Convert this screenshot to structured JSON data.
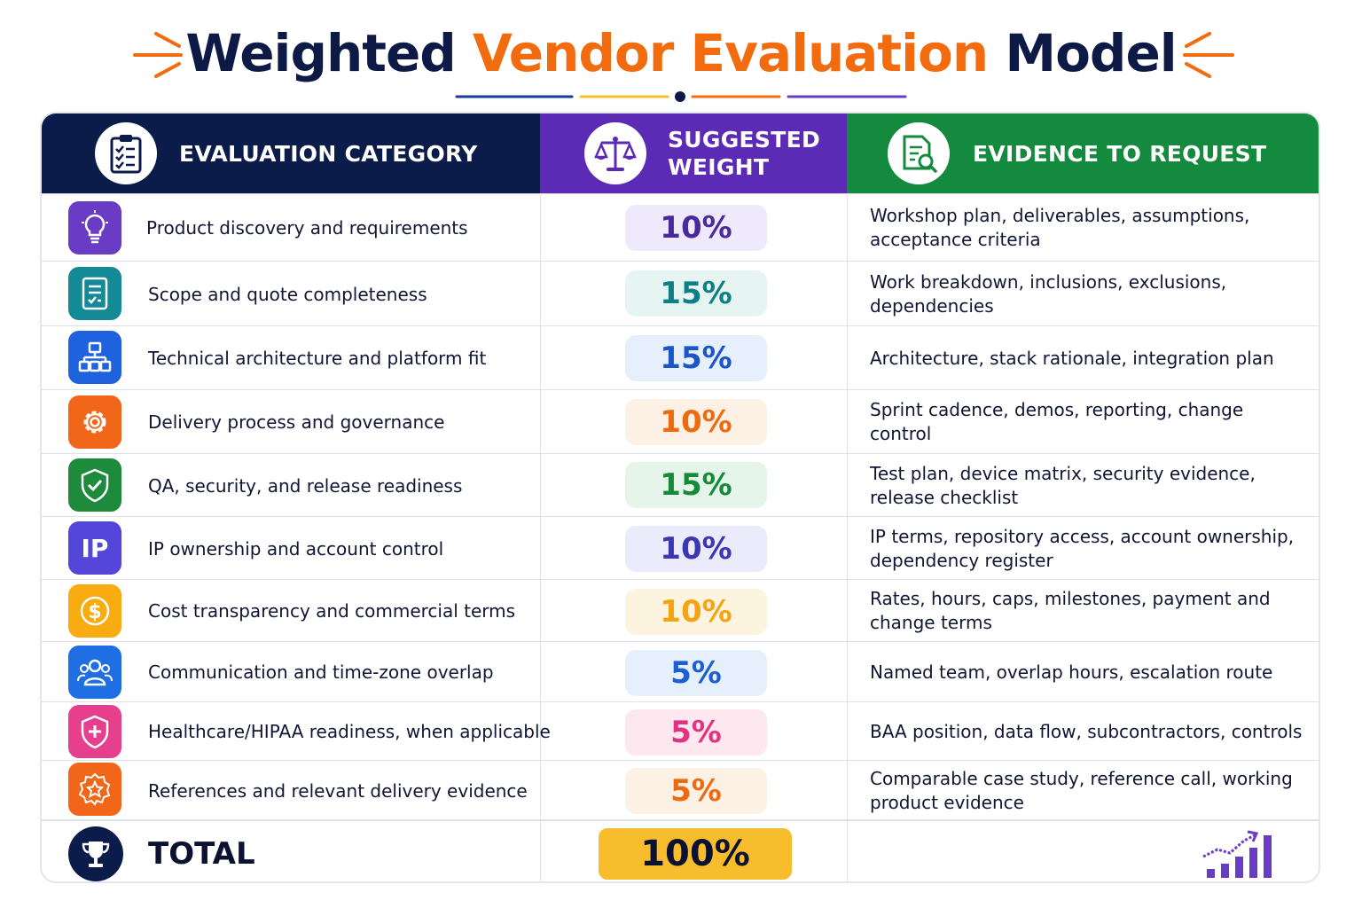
{
  "title": {
    "part1": "Weighted",
    "part2": "Vendor Evaluation",
    "part3": "Model"
  },
  "headers": {
    "category": "EVALUATION CATEGORY",
    "weight_line1": "SUGGESTED",
    "weight_line2": "WEIGHT",
    "evidence": "EVIDENCE TO REQUEST",
    "category_icon": "clipboard-checklist-icon",
    "weight_icon": "balance-scale-icon",
    "evidence_icon": "document-search-icon"
  },
  "rows": [
    {
      "category": "Product discovery and requirements",
      "weight": "10%",
      "evidence": "Workshop plan, deliverables, assumptions, acceptance criteria",
      "icon": "lightbulb-icon",
      "icon_color": "#6a3bc4",
      "weight_color": "#4a2a9a",
      "pill_color": "#efeafb"
    },
    {
      "category": "Scope and quote completeness",
      "weight": "15%",
      "evidence": "Work breakdown, inclusions, exclusions, dependencies",
      "icon": "checklist-document-icon",
      "icon_color": "#138a95",
      "weight_color": "#0f7e86",
      "pill_color": "#e6f5f2"
    },
    {
      "category": "Technical architecture and platform fit",
      "weight": "15%",
      "evidence": "Architecture, stack rationale, integration plan",
      "icon": "architecture-hierarchy-icon",
      "icon_color": "#1f62dd",
      "weight_color": "#1c55c7",
      "pill_color": "#e6f0fc"
    },
    {
      "category": "Delivery process and governance",
      "weight": "10%",
      "evidence": "Sprint cadence, demos, reporting, change control",
      "icon": "gear-icon",
      "icon_color": "#f2661a",
      "weight_color": "#ee6a10",
      "pill_color": "#fdf0e4"
    },
    {
      "category": "QA, security, and release readiness",
      "weight": "15%",
      "evidence": "Test plan, device matrix, security evidence, release checklist",
      "icon": "shield-check-icon",
      "icon_color": "#1d8a3c",
      "weight_color": "#178a3a",
      "pill_color": "#e5f5ea"
    },
    {
      "category": "IP ownership and account control",
      "weight": "10%",
      "evidence": "IP terms, repository access, account ownership, dependency register",
      "icon": "ip-badge-icon",
      "icon_color": "#5346d8",
      "weight_color": "#3c36b0",
      "pill_color": "#ebebfb"
    },
    {
      "category": "Cost transparency and commercial terms",
      "weight": "10%",
      "evidence": "Rates, hours, caps, milestones, payment and change terms",
      "icon": "dollar-coin-icon",
      "icon_color": "#f8ac12",
      "weight_color": "#f4a313",
      "pill_color": "#fdf4e0"
    },
    {
      "category": "Communication and time-zone overlap",
      "weight": "5%",
      "evidence": "Named team, overlap hours, escalation route",
      "icon": "team-users-icon",
      "icon_color": "#1f6ee3",
      "weight_color": "#1c5fd3",
      "pill_color": "#e6f0fc"
    },
    {
      "category": "Healthcare/HIPAA readiness, when applicable",
      "weight": "5%",
      "evidence": "BAA position, data flow, subcontractors, controls",
      "icon": "medical-shield-icon",
      "icon_color": "#e63f8e",
      "weight_color": "#e3337f",
      "pill_color": "#fde8f0"
    },
    {
      "category": "References and relevant delivery evidence",
      "weight": "5%",
      "evidence": "Comparable case study, reference call, working product evidence",
      "icon": "star-badge-icon",
      "icon_color": "#f2661a",
      "weight_color": "#ee6a10",
      "pill_color": "#fdf0e4"
    }
  ],
  "total": {
    "label": "TOTAL",
    "weight": "100%",
    "icon": "trophy-icon",
    "chart_icon": "growth-chart-icon"
  },
  "colors": {
    "navy": "#0b1c4a",
    "orange": "#f26b0f",
    "purple": "#5b2bb5",
    "green": "#138a3e",
    "gold": "#f7bd2c"
  }
}
